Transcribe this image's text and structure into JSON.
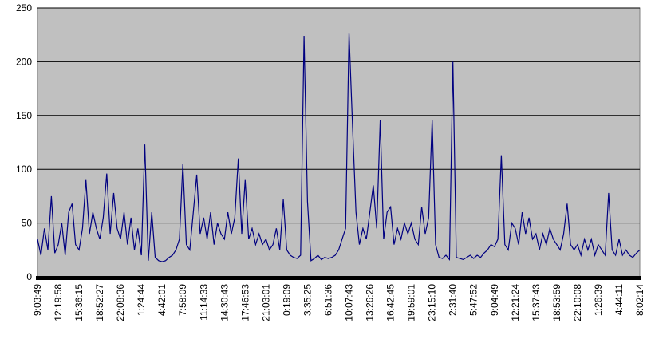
{
  "chart_data": {
    "type": "line",
    "categories": [
      "9:03:49",
      null,
      null,
      null,
      null,
      null,
      "12:19:58",
      null,
      null,
      null,
      null,
      null,
      "15:36:15",
      null,
      null,
      null,
      null,
      null,
      "18:52:27",
      null,
      null,
      null,
      null,
      null,
      "22:08:36",
      null,
      null,
      null,
      null,
      null,
      "1:24:44",
      null,
      null,
      null,
      null,
      null,
      "4:42:01",
      null,
      null,
      null,
      null,
      null,
      "7:58:09",
      null,
      null,
      null,
      null,
      null,
      "11:14:33",
      null,
      null,
      null,
      null,
      null,
      "14:30:43",
      null,
      null,
      null,
      null,
      null,
      "17:46:53",
      null,
      null,
      null,
      null,
      null,
      "21:03:01",
      null,
      null,
      null,
      null,
      null,
      "0:19:09",
      null,
      null,
      null,
      null,
      null,
      "3:35:25",
      null,
      null,
      null,
      null,
      null,
      "6:51:36",
      null,
      null,
      null,
      null,
      null,
      "10:07:43",
      null,
      null,
      null,
      null,
      null,
      "13:26:26",
      null,
      null,
      null,
      null,
      null,
      "16:42:45",
      null,
      null,
      null,
      null,
      null,
      "19:59:01",
      null,
      null,
      null,
      null,
      null,
      "23:15:10",
      null,
      null,
      null,
      null,
      null,
      "2:31:40",
      null,
      null,
      null,
      null,
      null,
      "5:47:52",
      null,
      null,
      null,
      null,
      null,
      "9:04:49",
      null,
      null,
      null,
      null,
      null,
      "12:21:24",
      null,
      null,
      null,
      null,
      null,
      "15:37:43",
      null,
      null,
      null,
      null,
      null,
      "18:53:59",
      null,
      null,
      null,
      null,
      null,
      "22:10:08",
      null,
      null,
      null,
      null,
      null,
      "1:26:39",
      null,
      null,
      null,
      null,
      null,
      "4:44:11",
      null,
      null,
      null,
      null,
      null,
      "8:02:14"
    ],
    "series": [
      {
        "color": "#000080",
        "values": [
          35,
          20,
          45,
          25,
          75,
          22,
          30,
          50,
          20,
          60,
          68,
          30,
          25,
          45,
          90,
          40,
          60,
          45,
          35,
          55,
          96,
          40,
          78,
          45,
          35,
          60,
          30,
          55,
          25,
          45,
          20,
          123,
          15,
          60,
          18,
          15,
          14,
          15,
          18,
          20,
          25,
          35,
          105,
          30,
          25,
          60,
          95,
          40,
          55,
          35,
          60,
          30,
          50,
          40,
          35,
          60,
          40,
          55,
          110,
          40,
          90,
          35,
          45,
          30,
          40,
          30,
          35,
          25,
          30,
          45,
          25,
          72,
          25,
          20,
          18,
          17,
          20,
          224,
          70,
          15,
          17,
          20,
          16,
          18,
          17,
          18,
          20,
          25,
          35,
          45,
          227,
          140,
          60,
          30,
          45,
          35,
          60,
          85,
          45,
          146,
          35,
          60,
          65,
          30,
          45,
          35,
          50,
          40,
          50,
          35,
          30,
          65,
          40,
          55,
          146,
          30,
          18,
          17,
          20,
          16,
          200,
          18,
          17,
          16,
          18,
          20,
          17,
          20,
          18,
          22,
          25,
          30,
          28,
          35,
          113,
          30,
          25,
          50,
          45,
          30,
          60,
          40,
          55,
          35,
          40,
          25,
          40,
          30,
          45,
          35,
          30,
          25,
          40,
          68,
          30,
          25,
          30,
          20,
          35,
          25,
          35,
          20,
          30,
          25,
          20,
          78,
          25,
          20,
          35,
          20,
          25,
          20,
          18,
          22,
          25
        ]
      }
    ],
    "ylim": [
      0,
      250
    ],
    "yticks": [
      0,
      50,
      100,
      150,
      200,
      250
    ],
    "grid": true
  }
}
